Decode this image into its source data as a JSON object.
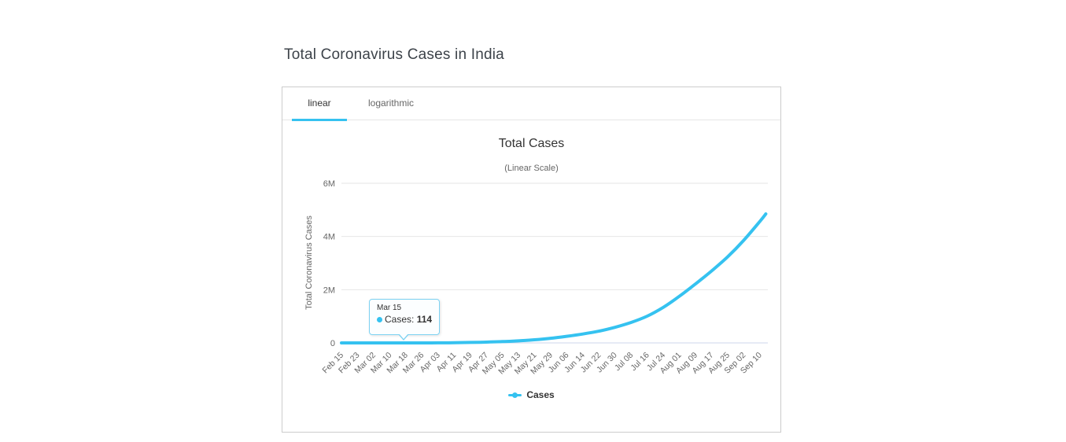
{
  "page": {
    "title": "Total Coronavirus Cases in India"
  },
  "panel": {
    "tabs": [
      {
        "label": "linear",
        "active": true
      },
      {
        "label": "logarithmic",
        "active": false
      }
    ]
  },
  "tooltip": {
    "date": "Mar 15",
    "series_label": "Cases:",
    "value": "114"
  },
  "legend": {
    "items": [
      {
        "label": "Cases",
        "color": "#35c2f0"
      }
    ]
  },
  "colors": {
    "accent": "#35c2f0",
    "grid_line": "#e6e6e6",
    "baseline": "#ccd6eb",
    "axis_label": "#666666",
    "chart_title": "#333333",
    "page_title": "#3d434a",
    "card_border": "#cccccc",
    "tooltip_border": "#7dd2f2"
  },
  "chart_data": {
    "type": "line",
    "title": "Total Cases",
    "subtitle": "(Linear Scale)",
    "xlabel": "",
    "ylabel": "Total Coronavirus Cases",
    "grid": true,
    "legend_position": "bottom",
    "ylim": [
      0,
      6000000
    ],
    "yticks": [
      {
        "value": 0,
        "label": "0"
      },
      {
        "value": 2000000,
        "label": "2M"
      },
      {
        "value": 4000000,
        "label": "4M"
      },
      {
        "value": 6000000,
        "label": "6M"
      }
    ],
    "x_range_days": [
      0,
      212
    ],
    "x_ticks": [
      {
        "label": "Feb 15",
        "day": 0
      },
      {
        "label": "Feb 23",
        "day": 8
      },
      {
        "label": "Mar 02",
        "day": 16
      },
      {
        "label": "Mar 10",
        "day": 24
      },
      {
        "label": "Mar 18",
        "day": 32
      },
      {
        "label": "Mar 26",
        "day": 40
      },
      {
        "label": "Apr 03",
        "day": 48
      },
      {
        "label": "Apr 11",
        "day": 56
      },
      {
        "label": "Apr 19",
        "day": 64
      },
      {
        "label": "Apr 27",
        "day": 72
      },
      {
        "label": "May 05",
        "day": 80
      },
      {
        "label": "May 13",
        "day": 88
      },
      {
        "label": "May 21",
        "day": 96
      },
      {
        "label": "May 29",
        "day": 104
      },
      {
        "label": "Jun 06",
        "day": 112
      },
      {
        "label": "Jun 14",
        "day": 120
      },
      {
        "label": "Jun 22",
        "day": 128
      },
      {
        "label": "Jun 30",
        "day": 136
      },
      {
        "label": "Jul 08",
        "day": 144
      },
      {
        "label": "Jul 16",
        "day": 152
      },
      {
        "label": "Jul 24",
        "day": 160
      },
      {
        "label": "Aug 01",
        "day": 168
      },
      {
        "label": "Aug 09",
        "day": 176
      },
      {
        "label": "Aug 17",
        "day": 184
      },
      {
        "label": "Aug 25",
        "day": 192
      },
      {
        "label": "Sep 02",
        "day": 200
      },
      {
        "label": "Sep 10",
        "day": 208
      }
    ],
    "series": [
      {
        "name": "Cases",
        "color": "#35c2f0",
        "points": [
          {
            "date": "Feb 15",
            "day": 0,
            "value": 3
          },
          {
            "date": "Feb 23",
            "day": 8,
            "value": 3
          },
          {
            "date": "Mar 02",
            "day": 16,
            "value": 5
          },
          {
            "date": "Mar 10",
            "day": 24,
            "value": 62
          },
          {
            "date": "Mar 15",
            "day": 29,
            "value": 114
          },
          {
            "date": "Mar 18",
            "day": 32,
            "value": 169
          },
          {
            "date": "Mar 26",
            "day": 40,
            "value": 727
          },
          {
            "date": "Apr 03",
            "day": 48,
            "value": 2567
          },
          {
            "date": "Apr 11",
            "day": 56,
            "value": 8446
          },
          {
            "date": "Apr 19",
            "day": 64,
            "value": 17615
          },
          {
            "date": "Apr 27",
            "day": 72,
            "value": 29451
          },
          {
            "date": "May 05",
            "day": 80,
            "value": 49400
          },
          {
            "date": "May 13",
            "day": 88,
            "value": 78055
          },
          {
            "date": "May 21",
            "day": 96,
            "value": 118226
          },
          {
            "date": "May 29",
            "day": 104,
            "value": 173491
          },
          {
            "date": "Jun 06",
            "day": 112,
            "value": 247040
          },
          {
            "date": "Jun 14",
            "day": 120,
            "value": 333255
          },
          {
            "date": "Jun 22",
            "day": 128,
            "value": 440450
          },
          {
            "date": "Jun 30",
            "day": 136,
            "value": 585792
          },
          {
            "date": "Jul 08",
            "day": 144,
            "value": 769052
          },
          {
            "date": "Jul 16",
            "day": 152,
            "value": 1005637
          },
          {
            "date": "Jul 24",
            "day": 160,
            "value": 1337024
          },
          {
            "date": "Aug 01",
            "day": 168,
            "value": 1751919
          },
          {
            "date": "Aug 09",
            "day": 176,
            "value": 2215074
          },
          {
            "date": "Aug 17",
            "day": 184,
            "value": 2702681
          },
          {
            "date": "Aug 25",
            "day": 192,
            "value": 3234474
          },
          {
            "date": "Sep 02",
            "day": 200,
            "value": 3853406
          },
          {
            "date": "Sep 10",
            "day": 208,
            "value": 4562414
          },
          {
            "date": "Sep 13",
            "day": 211,
            "value": 4846427
          }
        ]
      }
    ],
    "tooltip_point": {
      "date": "Mar 15",
      "series": "Cases",
      "value": 114,
      "day": 29
    }
  }
}
